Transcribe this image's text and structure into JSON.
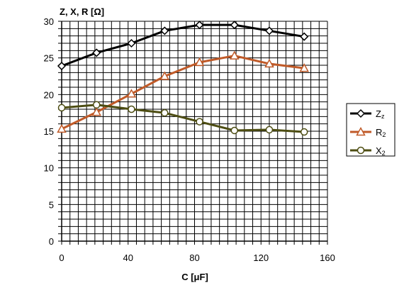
{
  "chart_data": {
    "type": "line",
    "ylabel": "Z, X, R [Ω]",
    "xlabel": "C [μF]",
    "xlim": [
      0,
      160
    ],
    "ylim": [
      0,
      30
    ],
    "x_ticks": [
      0,
      40,
      80,
      120,
      160
    ],
    "y_ticks": [
      0,
      5,
      10,
      15,
      20,
      25,
      30
    ],
    "grid": true,
    "legend_position": "right",
    "series": [
      {
        "name": "Zz",
        "label_main": "Z",
        "label_sub": "z",
        "color": "#000000",
        "marker": "diamond",
        "x": [
          0,
          21,
          42,
          62,
          83,
          104,
          125,
          146
        ],
        "y": [
          23.9,
          25.7,
          27.0,
          28.7,
          29.5,
          29.5,
          28.7,
          27.9
        ]
      },
      {
        "name": "R2",
        "label_main": "R",
        "label_sub": "2",
        "color": "#c05a28",
        "marker": "triangle",
        "x": [
          0,
          21,
          42,
          62,
          83,
          104,
          125,
          146
        ],
        "y": [
          15.3,
          17.6,
          20.1,
          22.5,
          24.4,
          25.3,
          24.2,
          23.6
        ]
      },
      {
        "name": "X2",
        "label_main": "X",
        "label_sub": "2",
        "color": "#4d4d12",
        "marker": "circle",
        "x": [
          0,
          21,
          42,
          62,
          83,
          104,
          125,
          146
        ],
        "y": [
          18.2,
          18.6,
          18.0,
          17.5,
          16.3,
          15.1,
          15.2,
          14.9
        ]
      }
    ]
  }
}
